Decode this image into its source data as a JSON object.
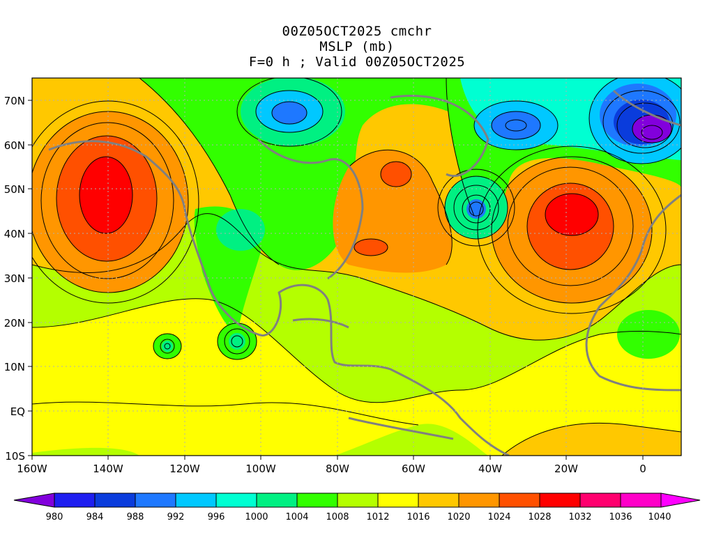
{
  "header": {
    "line1": "00Z05OCT2025 cmchr",
    "line2": "MSLP (mb)",
    "line3": "F=0 h ; Valid 00Z05OCT2025"
  },
  "map": {
    "lon_range": [
      -160,
      10
    ],
    "lat_range": [
      -10,
      75
    ],
    "x_ticks": [
      "160W",
      "140W",
      "120W",
      "100W",
      "80W",
      "60W",
      "40W",
      "20W",
      "0"
    ],
    "y_ticks": [
      "10S",
      "EQ",
      "10N",
      "20N",
      "30N",
      "40N",
      "50N",
      "60N",
      "70N"
    ],
    "pressure_systems": [
      {
        "type": "high",
        "value": 1032,
        "lon": -142,
        "lat": 48
      },
      {
        "type": "high",
        "value": 1032,
        "lon": -18,
        "lat": 45
      },
      {
        "type": "high",
        "value": 1028,
        "lon": -65,
        "lat": 50
      },
      {
        "type": "high",
        "value": 1028,
        "lon": -66,
        "lat": 37
      },
      {
        "type": "low",
        "value": 980,
        "lon": 0,
        "lat": 61
      },
      {
        "type": "low",
        "value": 988,
        "lon": -32,
        "lat": 65
      },
      {
        "type": "low",
        "value": 992,
        "lon": -88,
        "lat": 67
      },
      {
        "type": "low",
        "value": 988,
        "lon": -45,
        "lat": 45
      },
      {
        "type": "low",
        "value": 1004,
        "lon": -105,
        "lat": 15
      },
      {
        "type": "low",
        "value": 1004,
        "lon": -124,
        "lat": 15
      }
    ]
  },
  "colorbar": {
    "labels": [
      "980",
      "984",
      "988",
      "992",
      "996",
      "1000",
      "1004",
      "1008",
      "1012",
      "1016",
      "1020",
      "1024",
      "1028",
      "1032",
      "1036",
      "1040"
    ],
    "colors": [
      "#8200dc",
      "#1e1ef0",
      "#0a3cdc",
      "#1e78ff",
      "#00c8ff",
      "#00ffd2",
      "#00f082",
      "#32ff00",
      "#b4ff00",
      "#ffff00",
      "#ffc800",
      "#ff9600",
      "#ff5000",
      "#ff0000",
      "#ff006e",
      "#ff00c8",
      "#ff00ff"
    ]
  }
}
